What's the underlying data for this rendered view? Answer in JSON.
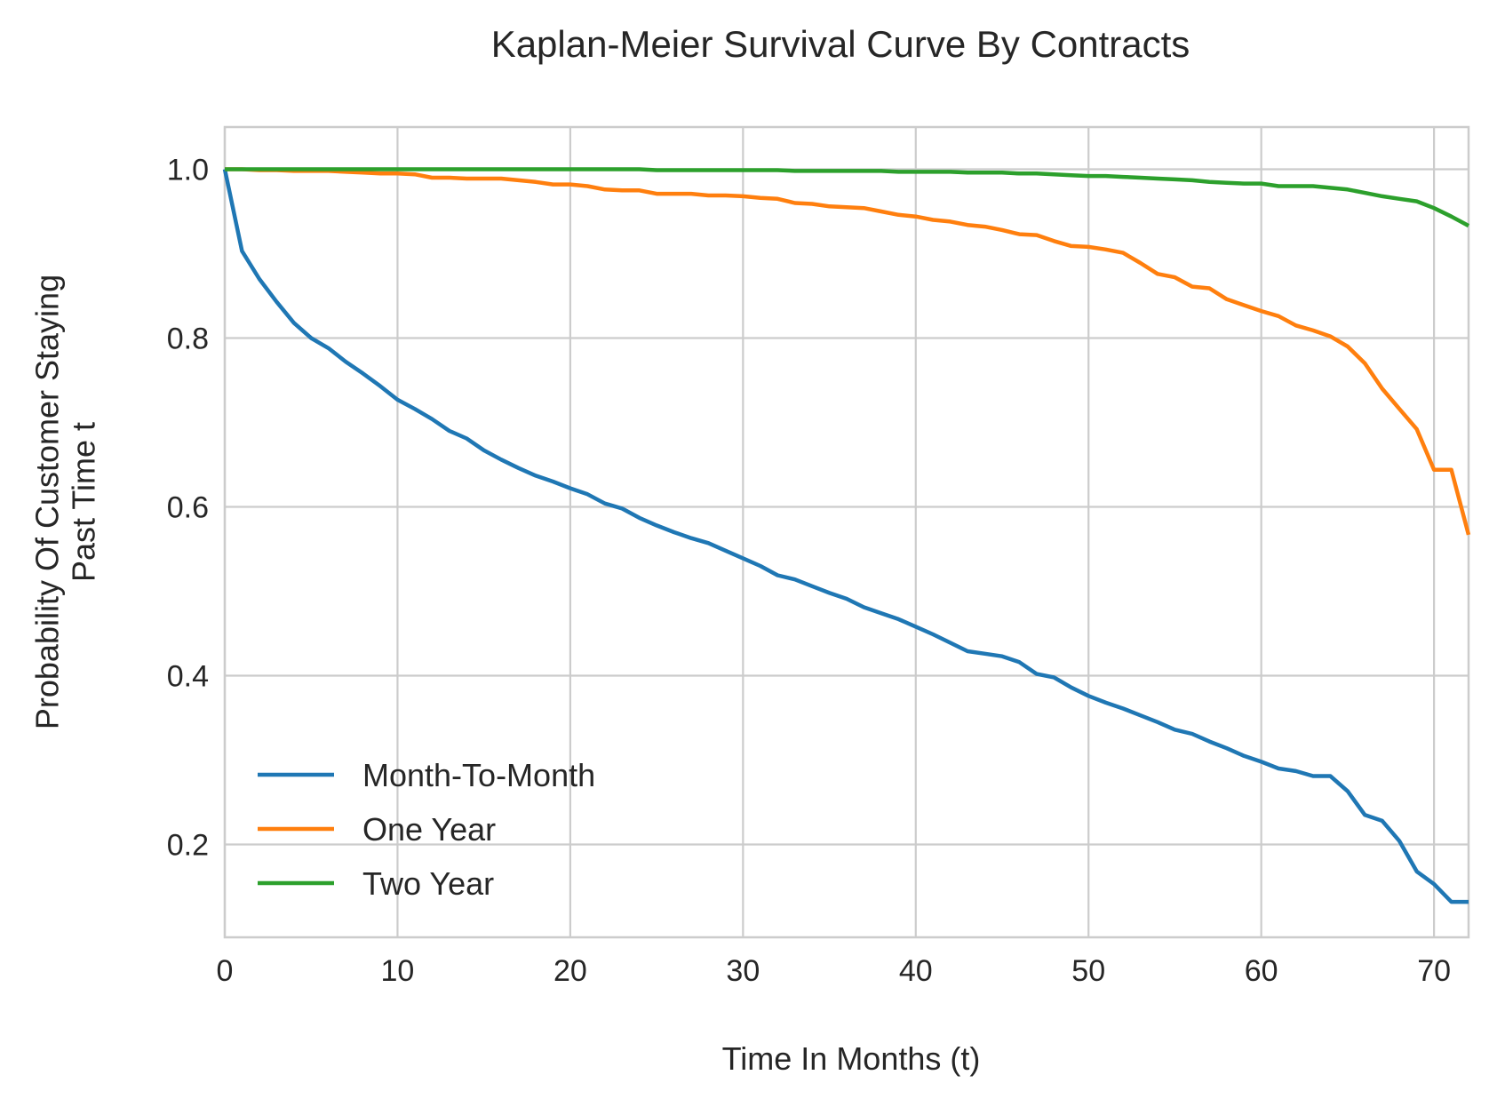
{
  "chart_data": {
    "type": "line",
    "title": "Kaplan-Meier Survival Curve By Contracts",
    "xlabel": "Time In Months (t)",
    "ylabel_lines": [
      "Probability Of Customer Staying",
      "Past Time t"
    ],
    "xlim": [
      0,
      72
    ],
    "ylim": [
      0.09,
      1.05
    ],
    "xticks": [
      0,
      10,
      20,
      30,
      40,
      50,
      60,
      70
    ],
    "yticks": [
      0.2,
      0.4,
      0.6,
      0.8,
      1.0
    ],
    "ytick_labels": [
      "0.2",
      "0.4",
      "0.6",
      "0.8",
      "1.0"
    ],
    "grid": true,
    "legend_position": "lower-left",
    "series": [
      {
        "name": "Month-To-Month",
        "color": "#1f77b4",
        "x": [
          0,
          1,
          2,
          3,
          4,
          5,
          6,
          7,
          8,
          9,
          10,
          11,
          12,
          13,
          14,
          15,
          16,
          17,
          18,
          19,
          20,
          21,
          22,
          23,
          24,
          25,
          26,
          27,
          28,
          29,
          30,
          31,
          32,
          33,
          34,
          35,
          36,
          37,
          38,
          39,
          40,
          41,
          42,
          43,
          44,
          45,
          46,
          47,
          48,
          49,
          50,
          51,
          52,
          53,
          54,
          55,
          56,
          57,
          58,
          59,
          60,
          61,
          62,
          63,
          64,
          65,
          66,
          67,
          68,
          69,
          70,
          71,
          72
        ],
        "y": [
          1.0,
          0.903,
          0.87,
          0.843,
          0.818,
          0.8,
          0.788,
          0.772,
          0.758,
          0.743,
          0.727,
          0.716,
          0.704,
          0.69,
          0.681,
          0.667,
          0.656,
          0.646,
          0.637,
          0.63,
          0.622,
          0.615,
          0.604,
          0.598,
          0.587,
          0.578,
          0.57,
          0.563,
          0.557,
          0.548,
          0.539,
          0.53,
          0.519,
          0.514,
          0.506,
          0.498,
          0.491,
          0.481,
          0.474,
          0.467,
          0.458,
          0.449,
          0.439,
          0.429,
          0.426,
          0.423,
          0.416,
          0.402,
          0.398,
          0.386,
          0.376,
          0.368,
          0.361,
          0.353,
          0.345,
          0.336,
          0.331,
          0.322,
          0.314,
          0.305,
          0.298,
          0.29,
          0.287,
          0.281,
          0.281,
          0.263,
          0.235,
          0.228,
          0.204,
          0.168,
          0.153,
          0.132,
          0.132
        ]
      },
      {
        "name": "One Year",
        "color": "#ff7f0e",
        "x": [
          0,
          1,
          2,
          3,
          4,
          5,
          6,
          7,
          8,
          9,
          10,
          11,
          12,
          13,
          14,
          15,
          16,
          17,
          18,
          19,
          20,
          21,
          22,
          23,
          24,
          25,
          26,
          27,
          28,
          29,
          30,
          31,
          32,
          33,
          34,
          35,
          36,
          37,
          38,
          39,
          40,
          41,
          42,
          43,
          44,
          45,
          46,
          47,
          48,
          49,
          50,
          51,
          52,
          53,
          54,
          55,
          56,
          57,
          58,
          59,
          60,
          61,
          62,
          63,
          64,
          65,
          66,
          67,
          68,
          69,
          70,
          71,
          72
        ],
        "y": [
          1.0,
          1.0,
          0.999,
          0.999,
          0.998,
          0.998,
          0.998,
          0.997,
          0.996,
          0.995,
          0.995,
          0.994,
          0.99,
          0.99,
          0.989,
          0.989,
          0.989,
          0.987,
          0.985,
          0.982,
          0.982,
          0.98,
          0.976,
          0.975,
          0.975,
          0.971,
          0.971,
          0.971,
          0.969,
          0.969,
          0.968,
          0.966,
          0.965,
          0.96,
          0.959,
          0.956,
          0.955,
          0.954,
          0.95,
          0.946,
          0.944,
          0.94,
          0.938,
          0.934,
          0.932,
          0.928,
          0.923,
          0.922,
          0.915,
          0.909,
          0.908,
          0.905,
          0.901,
          0.889,
          0.876,
          0.872,
          0.861,
          0.859,
          0.846,
          0.839,
          0.832,
          0.826,
          0.815,
          0.809,
          0.802,
          0.79,
          0.77,
          0.74,
          0.716,
          0.692,
          0.644,
          0.644,
          0.567
        ]
      },
      {
        "name": "Two Year",
        "color": "#2ca02c",
        "x": [
          0,
          5,
          10,
          15,
          20,
          24,
          25,
          30,
          32,
          33,
          35,
          38,
          39,
          42,
          43,
          45,
          46,
          47,
          48,
          49,
          50,
          51,
          52,
          53,
          54,
          55,
          56,
          57,
          58,
          59,
          60,
          61,
          62,
          63,
          64,
          65,
          66,
          67,
          68,
          69,
          70,
          71,
          72
        ],
        "y": [
          1.0,
          1.0,
          1.0,
          1.0,
          1.0,
          1.0,
          0.999,
          0.999,
          0.999,
          0.998,
          0.998,
          0.998,
          0.997,
          0.997,
          0.996,
          0.996,
          0.995,
          0.995,
          0.994,
          0.993,
          0.992,
          0.992,
          0.991,
          0.99,
          0.989,
          0.988,
          0.987,
          0.985,
          0.984,
          0.983,
          0.983,
          0.98,
          0.98,
          0.98,
          0.978,
          0.976,
          0.972,
          0.968,
          0.965,
          0.962,
          0.954,
          0.944,
          0.933
        ]
      }
    ]
  }
}
